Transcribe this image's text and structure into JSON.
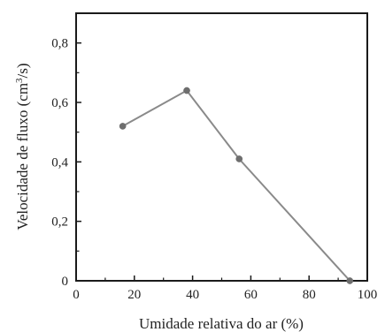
{
  "chart_data": {
    "type": "line",
    "xlabel": "Umidade relativa do ar (%)",
    "ylabel_prefix": "Velocidade de fluxo (cm",
    "ylabel_sup": "3",
    "ylabel_suffix": "/s)",
    "xlim": [
      0,
      100
    ],
    "ylim": [
      0,
      0.9
    ],
    "grid": false,
    "x_ticks": [
      {
        "value": 0,
        "label": "0"
      },
      {
        "value": 20,
        "label": "20"
      },
      {
        "value": 40,
        "label": "40"
      },
      {
        "value": 60,
        "label": "60"
      },
      {
        "value": 80,
        "label": "80"
      },
      {
        "value": 100,
        "label": "100"
      }
    ],
    "y_ticks": [
      {
        "value": 0,
        "label": "0"
      },
      {
        "value": 0.2,
        "label": "0,2"
      },
      {
        "value": 0.4,
        "label": "0,4"
      },
      {
        "value": 0.6,
        "label": "0,6"
      },
      {
        "value": 0.8,
        "label": "0,8"
      }
    ],
    "series": [
      {
        "color": "#8a8a8a",
        "marker_color": "#6e6e6e",
        "points": [
          {
            "x": 16,
            "y": 0.52
          },
          {
            "x": 38,
            "y": 0.64
          },
          {
            "x": 56,
            "y": 0.41
          },
          {
            "x": 94,
            "y": 0.0
          }
        ]
      }
    ]
  }
}
